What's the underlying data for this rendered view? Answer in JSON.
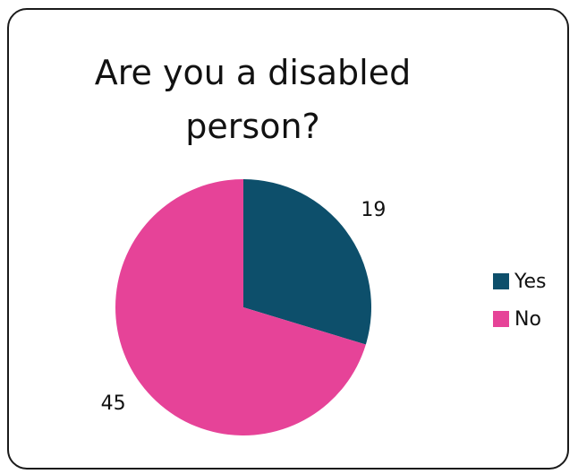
{
  "chart_data": {
    "type": "pie",
    "title": "Are you a disabled person?",
    "slices": [
      {
        "name": "Yes",
        "value": 19,
        "color": "#0d4f6b"
      },
      {
        "name": "No",
        "value": 45,
        "color": "#e64398"
      }
    ],
    "legend_position": "right",
    "data_labels": true
  }
}
